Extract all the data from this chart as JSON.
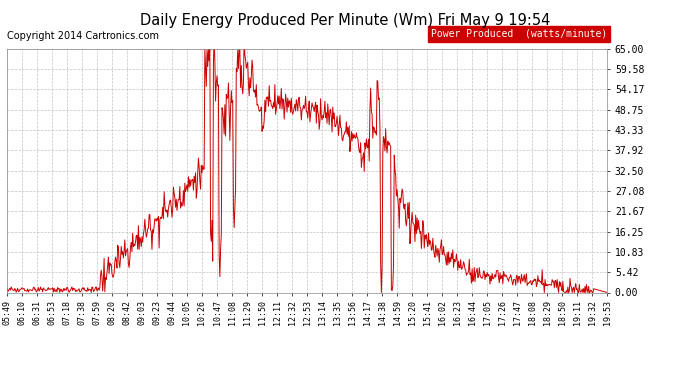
{
  "title": "Daily Energy Produced Per Minute (Wm) Fri May 9 19:54",
  "copyright": "Copyright 2014 Cartronics.com",
  "legend_label": "Power Produced  (watts/minute)",
  "legend_bg": "#cc0000",
  "legend_fg": "#ffffff",
  "line_color": "#cc0000",
  "bg_color": "#ffffff",
  "plot_bg": "#ffffff",
  "grid_color": "#aaaaaa",
  "title_color": "#000000",
  "ylim": [
    0,
    65.0
  ],
  "yticks": [
    0.0,
    5.42,
    10.83,
    16.25,
    21.67,
    27.08,
    32.5,
    37.92,
    43.33,
    48.75,
    54.17,
    59.58,
    65.0
  ],
  "ytick_labels": [
    "0.00",
    "5.42",
    "10.83",
    "16.25",
    "21.67",
    "27.08",
    "32.50",
    "37.92",
    "43.33",
    "48.75",
    "54.17",
    "59.58",
    "65.00"
  ],
  "xtick_labels": [
    "05:49",
    "06:10",
    "06:31",
    "06:53",
    "07:18",
    "07:38",
    "07:59",
    "08:20",
    "08:42",
    "09:03",
    "09:23",
    "09:44",
    "10:05",
    "10:26",
    "10:47",
    "11:08",
    "11:29",
    "11:50",
    "12:11",
    "12:32",
    "12:53",
    "13:14",
    "13:35",
    "13:56",
    "14:17",
    "14:38",
    "14:59",
    "15:20",
    "15:41",
    "16:02",
    "16:23",
    "16:44",
    "17:05",
    "17:26",
    "17:47",
    "18:08",
    "18:29",
    "18:50",
    "19:11",
    "19:32",
    "19:53"
  ]
}
